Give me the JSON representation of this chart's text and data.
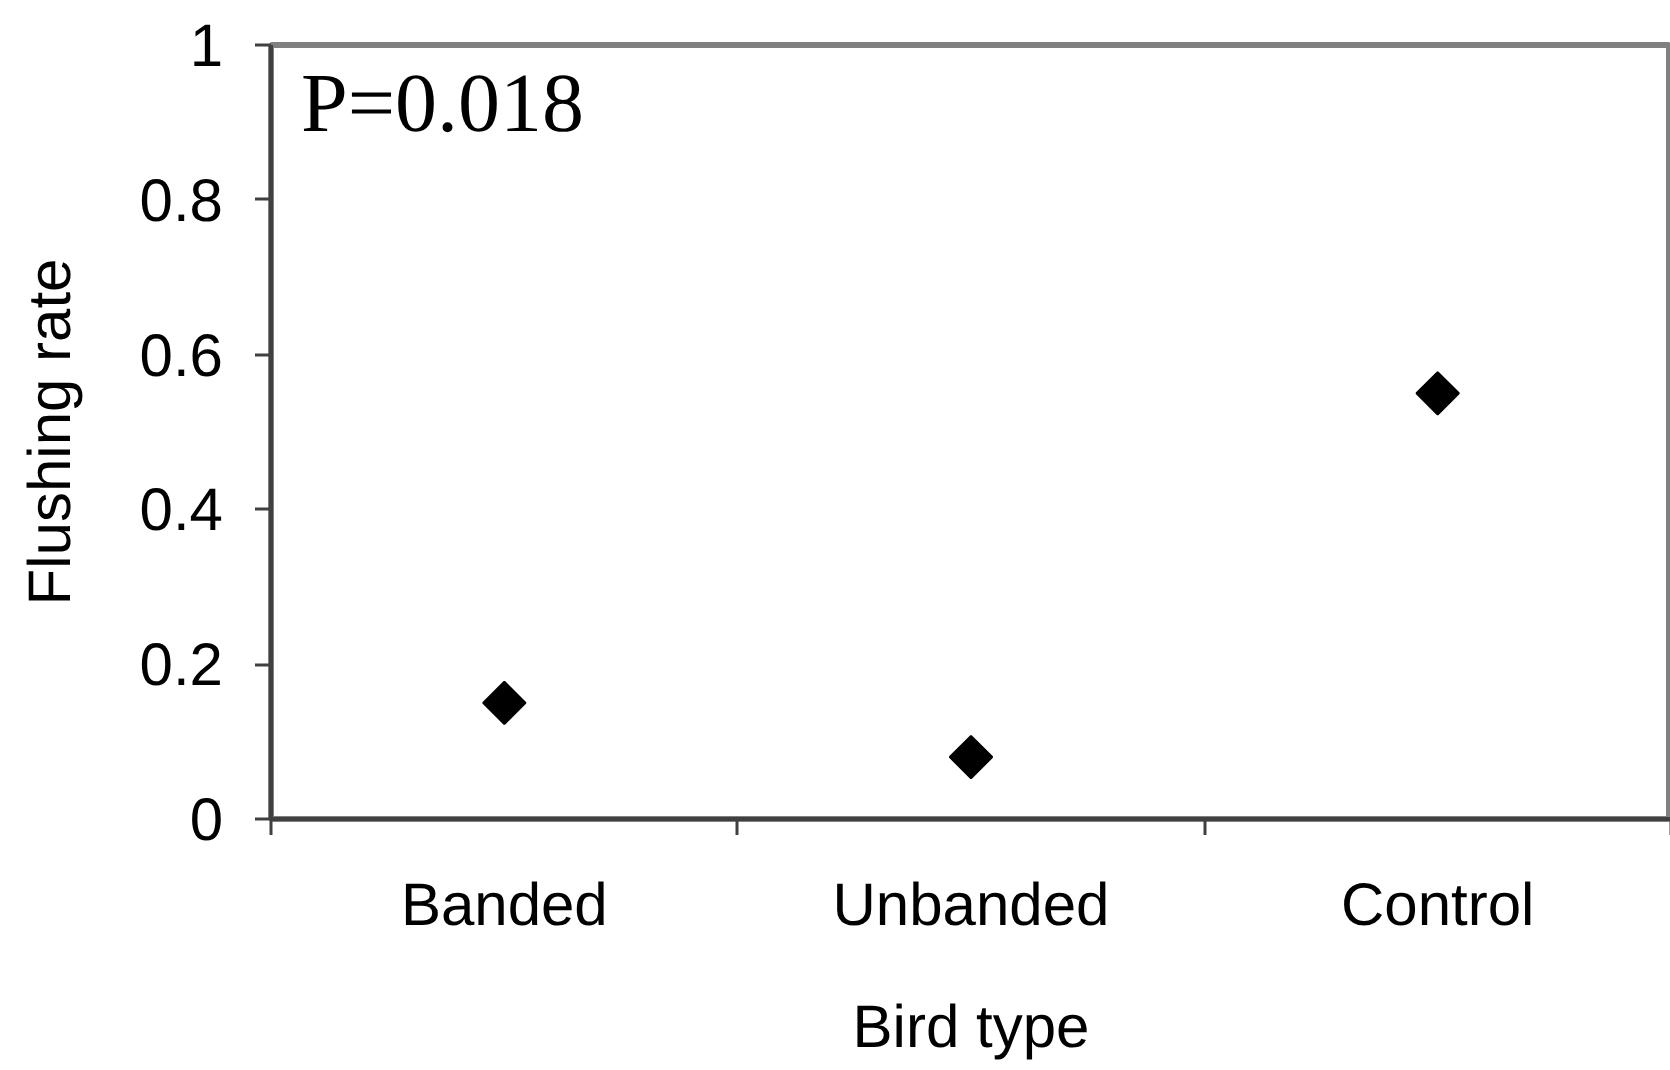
{
  "chart_data": {
    "type": "scatter",
    "xlabel": "Bird type",
    "ylabel": "Flushing rate",
    "annotations": [
      "P=0.018"
    ],
    "categories": [
      "Banded",
      "Unbanded",
      "Control"
    ],
    "series": [
      {
        "color": "#000000",
        "values": [
          0.15,
          0.08,
          0.55
        ]
      }
    ],
    "ylim": [
      0,
      1
    ],
    "yticks": [
      0,
      0.2,
      0.4,
      0.6,
      0.8,
      1
    ],
    "marker": "diamond",
    "grid": false
  }
}
